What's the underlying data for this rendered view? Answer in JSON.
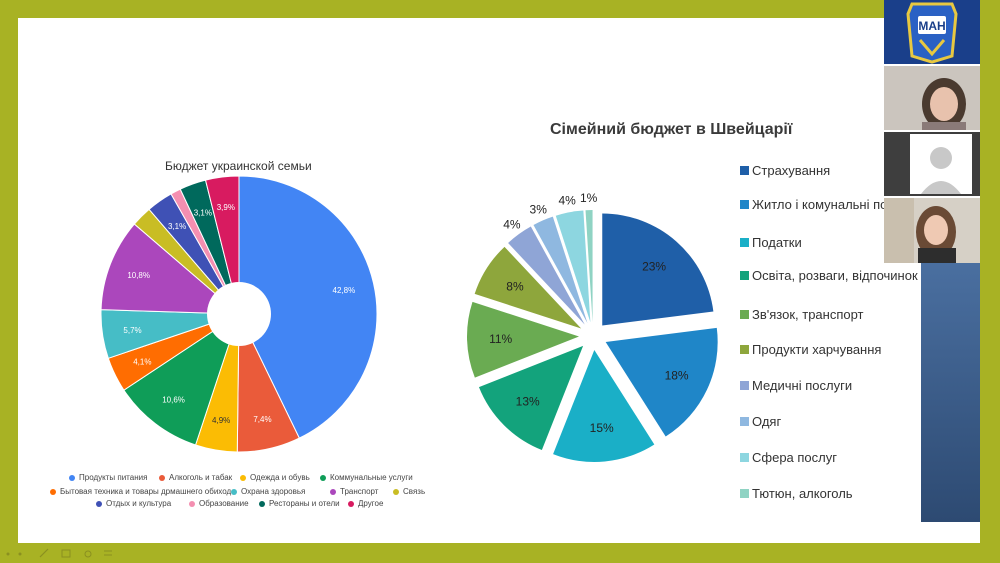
{
  "slide": {
    "chart1_title": "Бюджет украинской семьи",
    "chart2_title": "Сімейний бюджет в Швейцарії"
  },
  "chart_data": [
    {
      "type": "pie",
      "title": "Бюджет украинской семьи",
      "donut": true,
      "categories": [
        "Продукты питания",
        "Алкоголь и табак",
        "Одежда и обувь",
        "Коммунальные услуги",
        "Бытовая техника и товары дрмашнего обихода",
        "Охрана здоровья",
        "Транспорт",
        "Связь",
        "Отдых и культура",
        "Образование",
        "Рестораны и отели",
        "Другое"
      ],
      "values": [
        42.8,
        7.4,
        4.9,
        10.6,
        4.1,
        5.7,
        10.8,
        2.4,
        3.1,
        1.2,
        3.1,
        3.9
      ],
      "labels": [
        "42,8%",
        "7,4%",
        "4,9%",
        "10,6%",
        "4,1%",
        "5,7%",
        "10,8%",
        "",
        "3,1%",
        "",
        "3,1%",
        "3,9%"
      ],
      "colors": [
        "#4285f4",
        "#ea5b3a",
        "#fbbc04",
        "#0f9d58",
        "#ff6d01",
        "#46bdc6",
        "#ab47bc",
        "#c9bd24",
        "#3f51b5",
        "#f48fb1",
        "#00695c",
        "#d81b60"
      ],
      "legend": "bottom"
    },
    {
      "type": "pie",
      "title": "Сімейний бюджет в Швейцарії",
      "exploded": true,
      "categories": [
        "Страхування",
        "Житло і комунальні послуги",
        "Податки",
        "Освіта, розваги, відпочинок",
        "Зв'язок, транспорт",
        "Продукти харчування",
        "Медичні послуги",
        "Одяг",
        "Сфера послуг",
        "Тютюн, алкоголь"
      ],
      "values": [
        23,
        18,
        15,
        13,
        11,
        8,
        4,
        3,
        4,
        1
      ],
      "labels": [
        "23%",
        "18%",
        "15%",
        "13%",
        "11%",
        "8%",
        "4%",
        "3%",
        "4%",
        "1%"
      ],
      "colors": [
        "#1f5fa8",
        "#1f86c8",
        "#1aafc7",
        "#13a37c",
        "#6aab52",
        "#8ea63c",
        "#8fa5d6",
        "#8fb8e0",
        "#8dd6e0",
        "#8fd3c3"
      ],
      "legend": "right"
    }
  ],
  "legend2_labels": [
    "Страхування",
    "Житло і комунальні послуги",
    "Податки",
    "Освіта, розваги, відпочинок",
    "Зв'язок, транспорт",
    "Продукти харчування",
    "Медичні послуги",
    "Одяг",
    "Сфера послуг",
    "Тютюн, алкоголь"
  ],
  "video": {
    "logo_text": "МАН"
  }
}
